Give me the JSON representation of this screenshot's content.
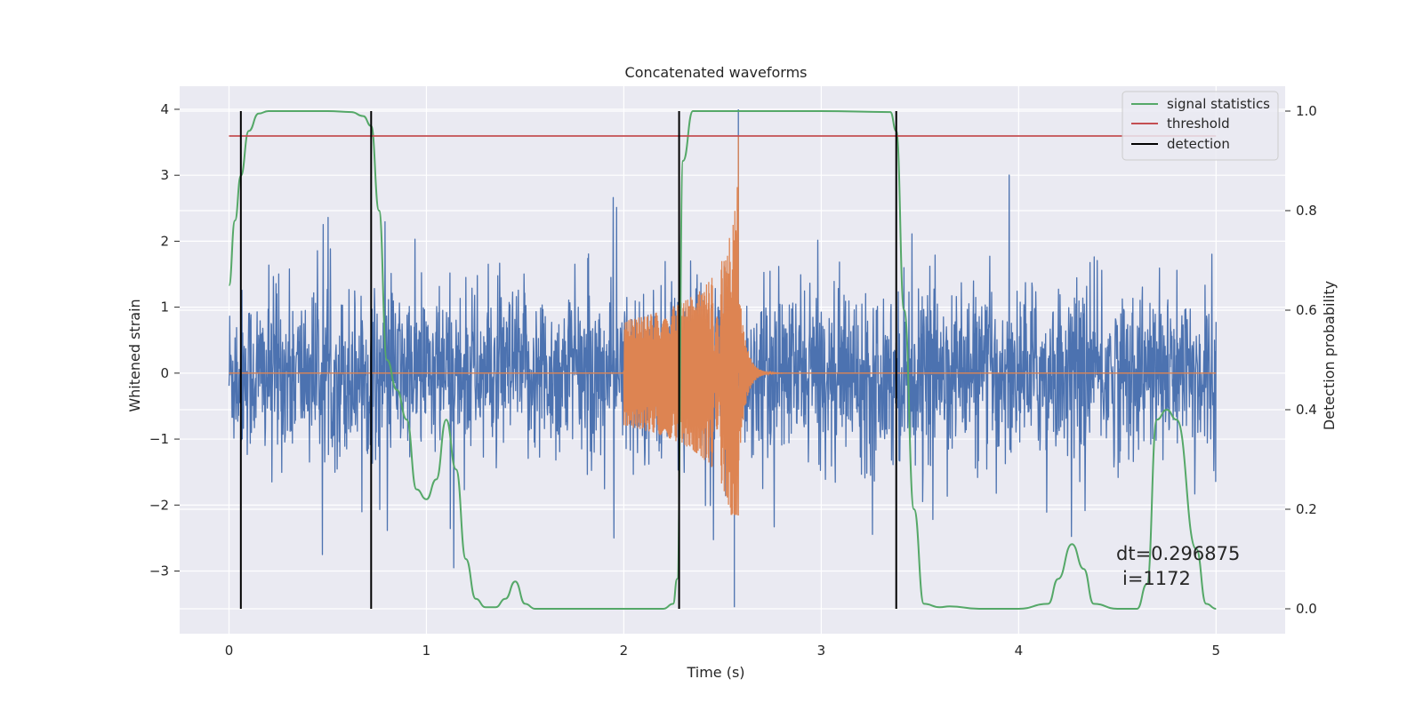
{
  "chart_data": {
    "type": "line",
    "title": "Concatenated waveforms",
    "xlabel": "Time (s)",
    "ylabel_left": "Whitened strain",
    "ylabel_right": "Detection probability",
    "xlim": [
      -0.25,
      5.35
    ],
    "ylim_left": [
      -3.95,
      4.35
    ],
    "ylim_right": [
      -0.05,
      1.05
    ],
    "x_ticks": [
      0,
      1,
      2,
      3,
      4,
      5
    ],
    "y_ticks_left": [
      -3,
      -2,
      -1,
      0,
      1,
      2,
      3,
      4
    ],
    "y_ticks_right": [
      0.0,
      0.2,
      0.4,
      0.6,
      0.8,
      1.0
    ],
    "x_tick_labels": [
      "0",
      "1",
      "2",
      "3",
      "4",
      "5"
    ],
    "y_tick_labels_left": [
      "−3",
      "−2",
      "−1",
      "0",
      "1",
      "2",
      "3",
      "4"
    ],
    "y_tick_labels_right": [
      "0.0",
      "0.2",
      "0.4",
      "0.6",
      "0.8",
      "1.0"
    ],
    "grid": true,
    "legend_position": "top-right",
    "series": [
      {
        "name": "",
        "kind": "noisy strain",
        "color": "#4c72b0",
        "axis": "left",
        "x_range": [
          0,
          5
        ],
        "typical_peak_abs": 1.5,
        "max": 4.0,
        "min": -3.55
      },
      {
        "name": "",
        "kind": "chirp injection",
        "color": "#dd8452",
        "axis": "left",
        "x_range": [
          0,
          5
        ],
        "chirp_start": 2.0,
        "chirp_peak_time": 2.58,
        "start_amplitude": 0.8,
        "peak_amplitude": 3.6,
        "min": -2.15
      },
      {
        "name": "signal statistics",
        "color": "#55a868",
        "axis": "right",
        "x": [
          0.0,
          0.03,
          0.06,
          0.1,
          0.15,
          0.2,
          0.3,
          0.5,
          0.62,
          0.68,
          0.72,
          0.76,
          0.8,
          0.85,
          0.9,
          0.95,
          1.0,
          1.05,
          1.1,
          1.15,
          1.2,
          1.25,
          1.3,
          1.35,
          1.4,
          1.45,
          1.5,
          1.55,
          1.6,
          2.0,
          2.2,
          2.25,
          2.27,
          2.3,
          2.35,
          2.5,
          3.0,
          3.35,
          3.38,
          3.42,
          3.47,
          3.52,
          3.6,
          3.65,
          3.8,
          4.0,
          4.15,
          4.2,
          4.27,
          4.33,
          4.38,
          4.5,
          4.6,
          4.65,
          4.7,
          4.75,
          4.8,
          4.9,
          4.95,
          5.0
        ],
        "values": [
          0.65,
          0.78,
          0.87,
          0.96,
          0.995,
          1.0,
          1.0,
          1.0,
          0.998,
          0.99,
          0.97,
          0.8,
          0.5,
          0.44,
          0.38,
          0.24,
          0.22,
          0.26,
          0.38,
          0.28,
          0.1,
          0.02,
          0.003,
          0.003,
          0.02,
          0.055,
          0.01,
          0.0,
          0.0,
          0.0,
          0.0,
          0.01,
          0.06,
          0.9,
          1.0,
          1.0,
          1.0,
          0.998,
          0.96,
          0.6,
          0.2,
          0.01,
          0.003,
          0.005,
          0.0,
          0.0,
          0.01,
          0.06,
          0.13,
          0.08,
          0.01,
          0.0,
          0.0,
          0.05,
          0.38,
          0.4,
          0.38,
          0.12,
          0.01,
          0.0
        ]
      },
      {
        "name": "threshold",
        "color": "#c44e52",
        "axis": "right",
        "x": [
          0,
          5
        ],
        "values": [
          0.95,
          0.95
        ]
      },
      {
        "name": "detection",
        "color": "#000000",
        "axis": "right",
        "x_positions": [
          0.06,
          0.72,
          2.28,
          3.38
        ],
        "y_range": [
          0.0,
          1.0
        ]
      }
    ],
    "annotations": [
      "dt=0.296875",
      "i=1172"
    ]
  }
}
